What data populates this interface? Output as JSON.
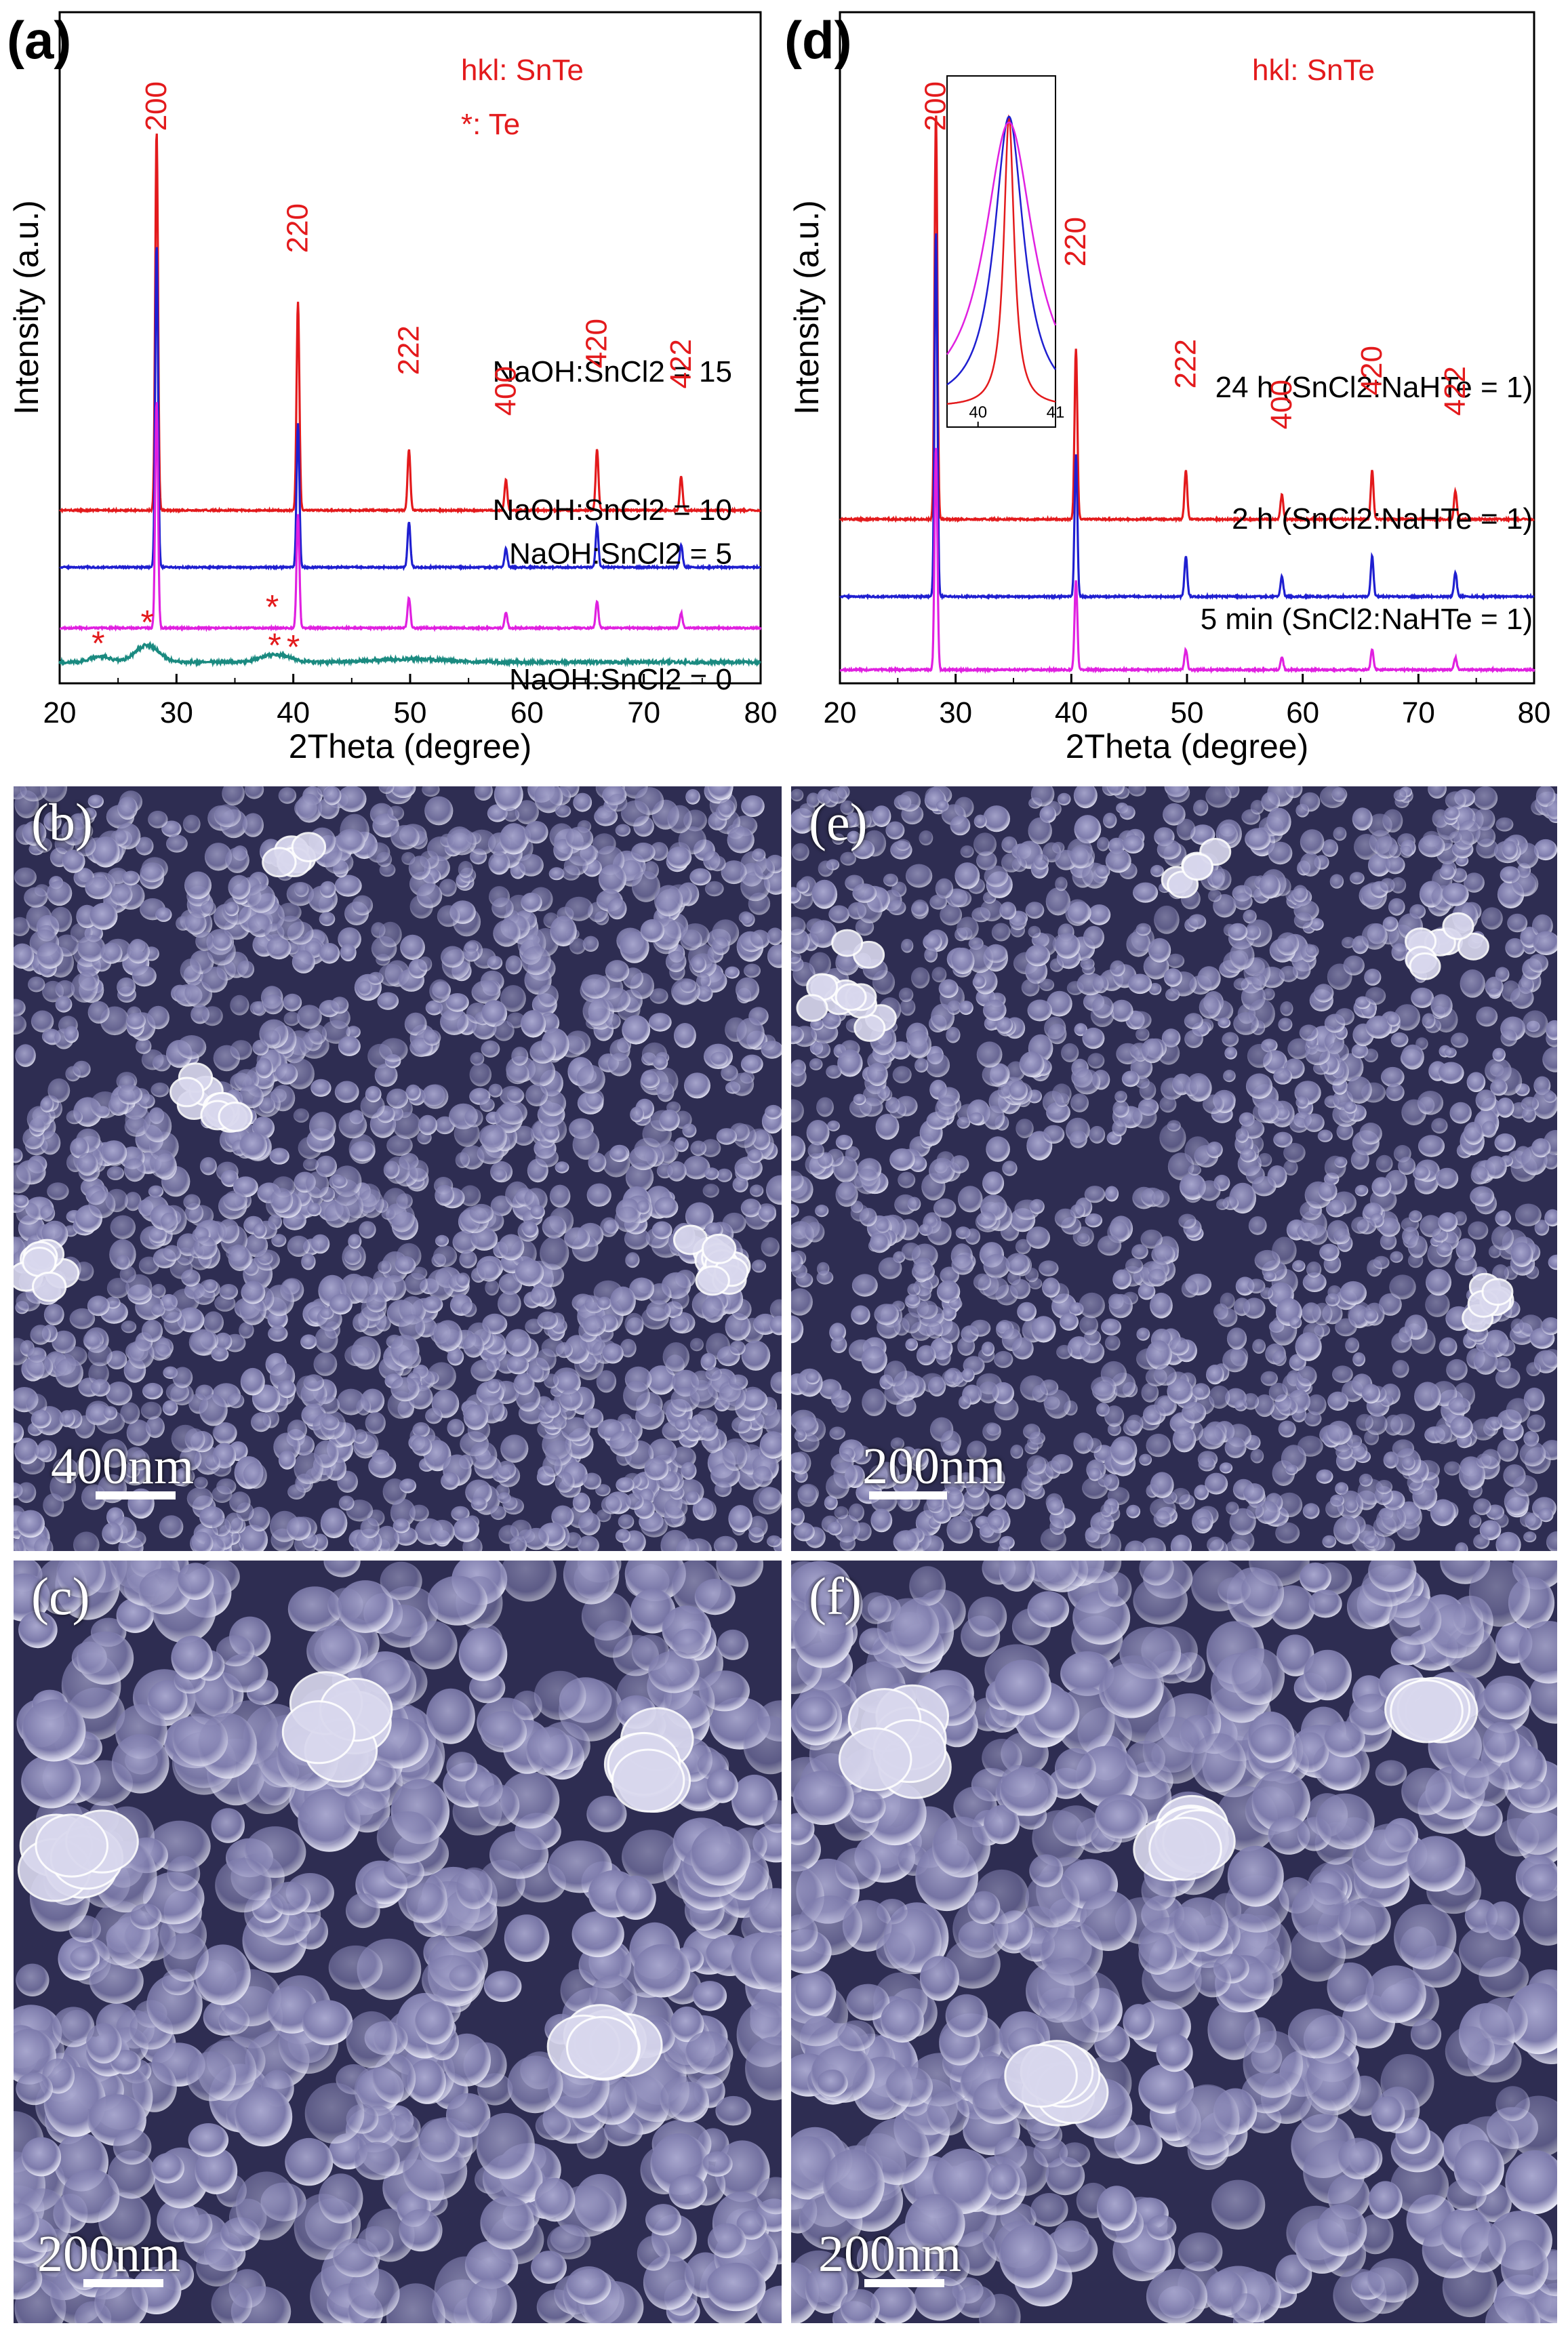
{
  "chart_data": [
    {
      "type": "line",
      "panel_label": "(a)",
      "xlabel": "2Theta (degree)",
      "ylabel": "Intensity (a.u.)",
      "xlim": [
        20,
        80
      ],
      "xticks": [
        "20",
        "30",
        "40",
        "50",
        "60",
        "70",
        "80"
      ],
      "legend_lines": [
        "hkl: SnTe",
        "*: Te"
      ],
      "colors": {
        "red": "#e31a1c",
        "blue": "#1f1fd0",
        "magenta": "#e020e0",
        "teal": "#1a8a80",
        "annotation": "#e31a1c"
      },
      "peaks": [
        {
          "hkl": "200",
          "x": 28.3
        },
        {
          "hkl": "220",
          "x": 40.4
        },
        {
          "hkl": "222",
          "x": 49.9
        },
        {
          "hkl": "400",
          "x": 58.2
        },
        {
          "hkl": "420",
          "x": 66.0
        },
        {
          "hkl": "422",
          "x": 73.2
        }
      ],
      "te_markers": [
        23.3,
        27.5,
        38.4,
        38.6,
        40.0
      ],
      "series": [
        {
          "name": "NaOH:SnCl2 = 15",
          "color": "#e31a1c",
          "baseline": 0.42,
          "heights": [
            1.0,
            0.55,
            0.16,
            0.08,
            0.16,
            0.09
          ]
        },
        {
          "name": "NaOH:SnCl2 = 10",
          "color": "#1f1fd0",
          "baseline": 0.27,
          "heights": [
            0.85,
            0.38,
            0.12,
            0.05,
            0.11,
            0.06
          ]
        },
        {
          "name": "NaOH:SnCl2 = 5",
          "color": "#e020e0",
          "baseline": 0.11,
          "heights": [
            0.6,
            0.3,
            0.08,
            0.04,
            0.07,
            0.04
          ]
        },
        {
          "name": "NaOH:SnCl2 = 0",
          "color": "#1a8a80",
          "baseline": 0.02,
          "broad": true
        }
      ]
    },
    {
      "type": "line",
      "panel_label": "(d)",
      "xlabel": "2Theta (degree)",
      "ylabel": "Intensity (a.u.)",
      "xlim": [
        20,
        80
      ],
      "xticks": [
        "20",
        "30",
        "40",
        "50",
        "60",
        "70",
        "80"
      ],
      "legend_lines": [
        "hkl: SnTe"
      ],
      "inset_xticks": [
        "40",
        "41"
      ],
      "colors": {
        "red": "#e31a1c",
        "blue": "#1f1fd0",
        "magenta": "#e020e0",
        "annotation": "#e31a1c"
      },
      "peaks": [
        {
          "hkl": "200",
          "x": 28.3
        },
        {
          "hkl": "220",
          "x": 40.4
        },
        {
          "hkl": "222",
          "x": 49.9
        },
        {
          "hkl": "400",
          "x": 58.2
        },
        {
          "hkl": "420",
          "x": 66.0
        },
        {
          "hkl": "422",
          "x": 73.2
        }
      ],
      "series": [
        {
          "name": "24 h (SnCl2:NaHTe = 1)",
          "color": "#e31a1c",
          "baseline": 0.37,
          "heights": [
            1.0,
            0.42,
            0.12,
            0.06,
            0.12,
            0.07
          ]
        },
        {
          "name": "2 h (SnCl2:NaHTe = 1)",
          "color": "#1f1fd0",
          "baseline": 0.18,
          "heights": [
            0.9,
            0.35,
            0.1,
            0.05,
            0.1,
            0.06
          ]
        },
        {
          "name": "5 min (SnCl2:NaHTe = 1)",
          "color": "#e020e0",
          "baseline": 0.0,
          "heights": [
            0.55,
            0.22,
            0.05,
            0.03,
            0.05,
            0.03
          ]
        }
      ]
    }
  ],
  "sem_panels": [
    {
      "label": "(b)",
      "scale": "400nm"
    },
    {
      "label": "(e)",
      "scale": "200nm"
    },
    {
      "label": "(c)",
      "scale": "200nm"
    },
    {
      "label": "(f)",
      "scale": "200nm"
    }
  ]
}
